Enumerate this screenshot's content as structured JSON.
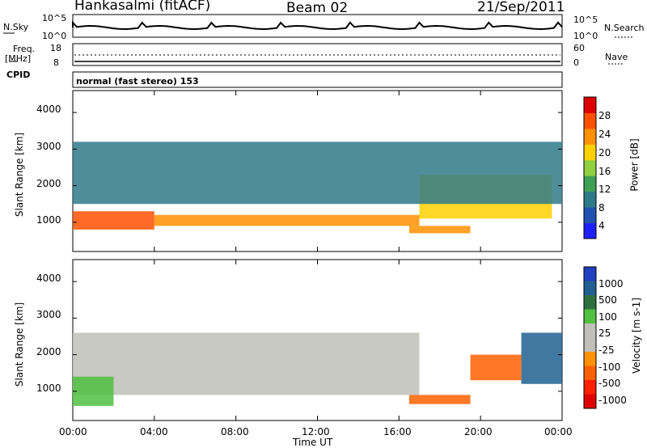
{
  "header": {
    "station": "Hankasalmi (fitACF)",
    "beam": "Beam 02",
    "date": "21/Sep/2011"
  },
  "top_panels": {
    "nsky_label": "N.Sky",
    "nsky_ticks": [
      "10^5",
      "10^0"
    ],
    "nsearch_label": "N.Search",
    "nsearch_ticks": [
      "10^5",
      "10^0"
    ],
    "freq_label": "Freq.",
    "freq_unit": "[MHz]",
    "freq_ticks": [
      "18",
      "8"
    ],
    "nave_label": "Nave",
    "nave_ticks": [
      "60",
      "0"
    ],
    "cpid_label": "CPID",
    "cpid_text": "normal (fast stereo) 153"
  },
  "colors": {
    "power_scale": [
      "#1f1fff",
      "#2050b0",
      "#2f7a8a",
      "#3f9f55",
      "#8fcf40",
      "#ffd000",
      "#ff9000",
      "#ff5000",
      "#e00000"
    ],
    "velocity_scale": [
      "#2040c0",
      "#206090",
      "#307040",
      "#50c040",
      "#c0c0b8",
      "#c0c0b8",
      "#ff9000",
      "#ff6000",
      "#ff2000",
      "#e00000"
    ]
  },
  "chart_data": [
    {
      "type": "heatmap",
      "title": "",
      "xlabel": "",
      "ylabel": "Slant Range [km]",
      "xlim": [
        "00:00",
        "24:00"
      ],
      "ylim": [
        200,
        4600
      ],
      "colorbar": {
        "label": "Power [dB]",
        "ticks": [
          "4",
          "8",
          "12",
          "16",
          "20",
          "24",
          "28"
        ]
      },
      "y_ticks": [
        "1000",
        "2000",
        "3000",
        "4000"
      ],
      "features": [
        {
          "hours": [
            0,
            4
          ],
          "range_km": [
            800,
            1300
          ],
          "value_dB": 28
        },
        {
          "hours": [
            4,
            17
          ],
          "range_km": [
            900,
            1200
          ],
          "value_dB": 24
        },
        {
          "hours": [
            16.5,
            19.5
          ],
          "range_km": [
            700,
            900
          ],
          "value_dB": 24
        },
        {
          "hours": [
            17,
            23.5
          ],
          "range_km": [
            1100,
            2300
          ],
          "value_dB": 20
        },
        {
          "hours": [
            0,
            24
          ],
          "range_km": [
            1500,
            3200
          ],
          "value_dB": 8
        }
      ]
    },
    {
      "type": "heatmap",
      "title": "",
      "xlabel": "Time UT",
      "ylabel": "Slant Range [km]",
      "xlim": [
        "00:00",
        "24:00"
      ],
      "ylim": [
        200,
        4600
      ],
      "colorbar": {
        "label": "Velocity [m s-1]",
        "ticks": [
          "1000",
          "500",
          "100",
          "25",
          "-25",
          "-100",
          "-500",
          "-1000"
        ]
      },
      "y_ticks": [
        "1000",
        "2000",
        "3000",
        "4000"
      ],
      "x_ticks": [
        "00:00",
        "04:00",
        "08:00",
        "12:00",
        "16:00",
        "20:00",
        "00:00"
      ],
      "features": [
        {
          "hours": [
            0,
            17
          ],
          "range_km": [
            900,
            2600
          ],
          "value_mps": 0
        },
        {
          "hours": [
            0,
            2
          ],
          "range_km": [
            600,
            1400
          ],
          "value_mps": 100
        },
        {
          "hours": [
            16.5,
            19.5
          ],
          "range_km": [
            650,
            900
          ],
          "value_mps": -500
        },
        {
          "hours": [
            19.5,
            22
          ],
          "range_km": [
            1300,
            2000
          ],
          "value_mps": -500
        },
        {
          "hours": [
            22,
            24
          ],
          "range_km": [
            1200,
            2600
          ],
          "value_mps": 500
        }
      ]
    }
  ]
}
